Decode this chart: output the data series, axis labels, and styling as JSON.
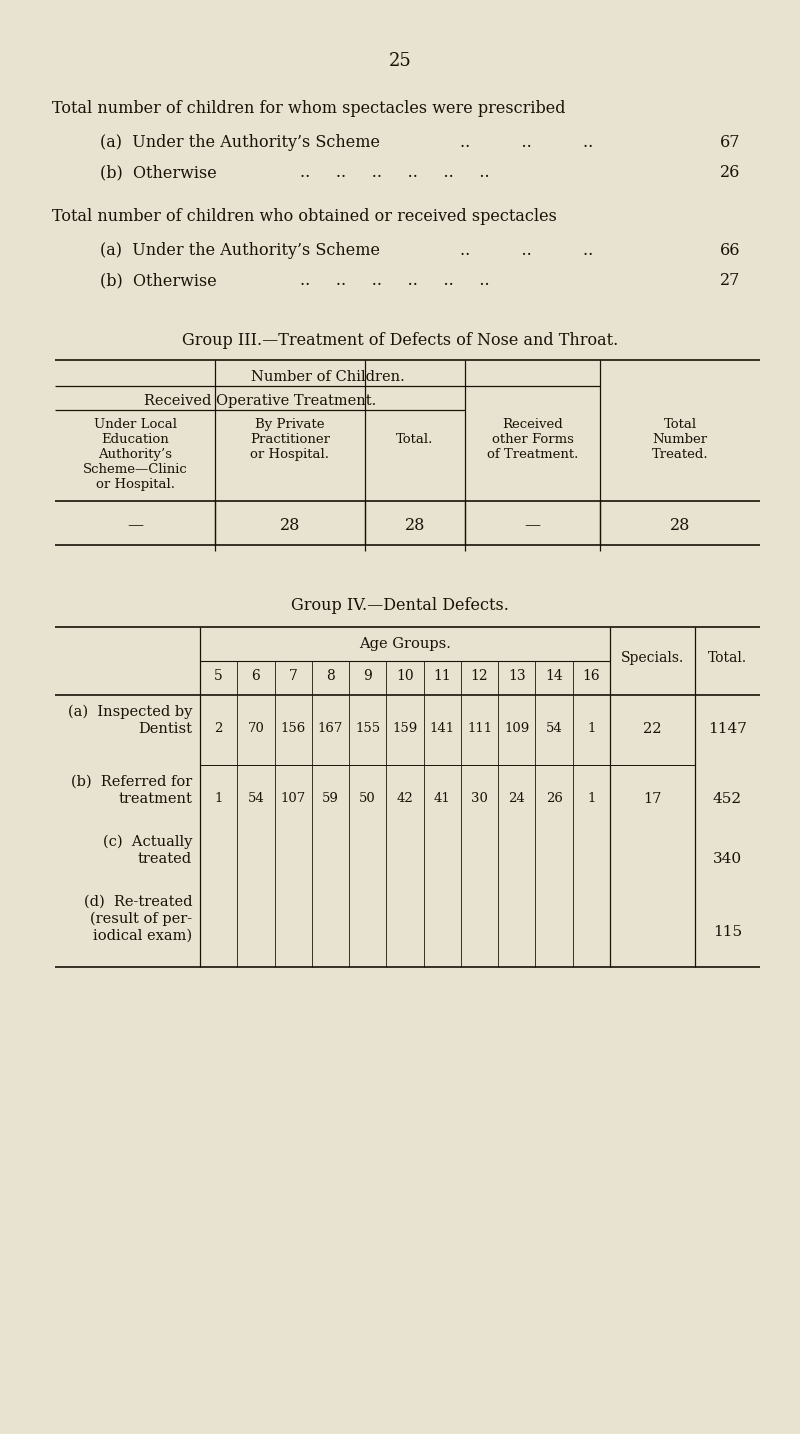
{
  "bg_color": "#e8e3d0",
  "text_color": "#1a1208",
  "page_number": "25",
  "spec_presc_title": "Total number of children for whom spectacles were prescribed",
  "spec_presc_a_label": "(a)  Under the Authority’s Scheme",
  "spec_presc_a_dots": "..          ..          ..",
  "spec_presc_a_val": "67",
  "spec_presc_b_label": "(b)  Otherwise",
  "spec_presc_b_dots": "..     ..     ..     ..     ..     ..",
  "spec_presc_b_val": "26",
  "spec_recv_title": "Total number of children who obtained or received spectacles",
  "spec_recv_a_label": "(a)  Under the Authority’s Scheme",
  "spec_recv_a_dots": "..          ..          ..",
  "spec_recv_a_val": "66",
  "spec_recv_b_label": "(b)  Otherwise",
  "spec_recv_b_dots": "..     ..     ..     ..     ..     ..",
  "spec_recv_b_val": "27",
  "g3_title": "Group III.—Treatment of Defects of Nose and Throat.",
  "g3_col1": [
    "Under Local",
    "Education",
    "Authority’s",
    "Scheme—Clinic",
    "or Hospital."
  ],
  "g3_col2": [
    "By Private",
    "Practitioner",
    "or Hospital."
  ],
  "g3_col3": "Total.",
  "g3_col4": [
    "Received",
    "other Forms",
    "of Treatment."
  ],
  "g3_col5": [
    "Total",
    "Number",
    "Treated."
  ],
  "g3_data": [
    "—",
    "28",
    "28",
    "—",
    "28"
  ],
  "g4_title": "Group IV.—Dental Defects.",
  "g4_age_label": "Age Groups.",
  "g4_ages": [
    "5",
    "6",
    "7",
    "8",
    "9",
    "10",
    "11",
    "12",
    "13",
    "14",
    "16"
  ],
  "g4_specials_label": "Specials.",
  "g4_total_label": "Total.",
  "g4_ra_l1": "(a)  Inspected by",
  "g4_ra_l2": "Dentist",
  "g4_ra_data": [
    "2",
    "70",
    "156",
    "167",
    "155",
    "159",
    "141",
    "111",
    "109",
    "54",
    "1"
  ],
  "g4_ra_spec": "22",
  "g4_ra_tot": "1147",
  "g4_rb_l1": "(b)  Referred for",
  "g4_rb_l2": "treatment",
  "g4_rb_data": [
    "1",
    "54",
    "107",
    "59",
    "50",
    "42",
    "41",
    "30",
    "24",
    "26",
    "1"
  ],
  "g4_rb_spec": "17",
  "g4_rb_tot": "452",
  "g4_rc_l1": "(c)  Actually",
  "g4_rc_l2": "treated",
  "g4_rc_tot": "340",
  "g4_rd_l1": "(d)  Re-treated",
  "g4_rd_l2": "(result of per-",
  "g4_rd_l3": "iodical exam)",
  "g4_rd_tot": "115"
}
